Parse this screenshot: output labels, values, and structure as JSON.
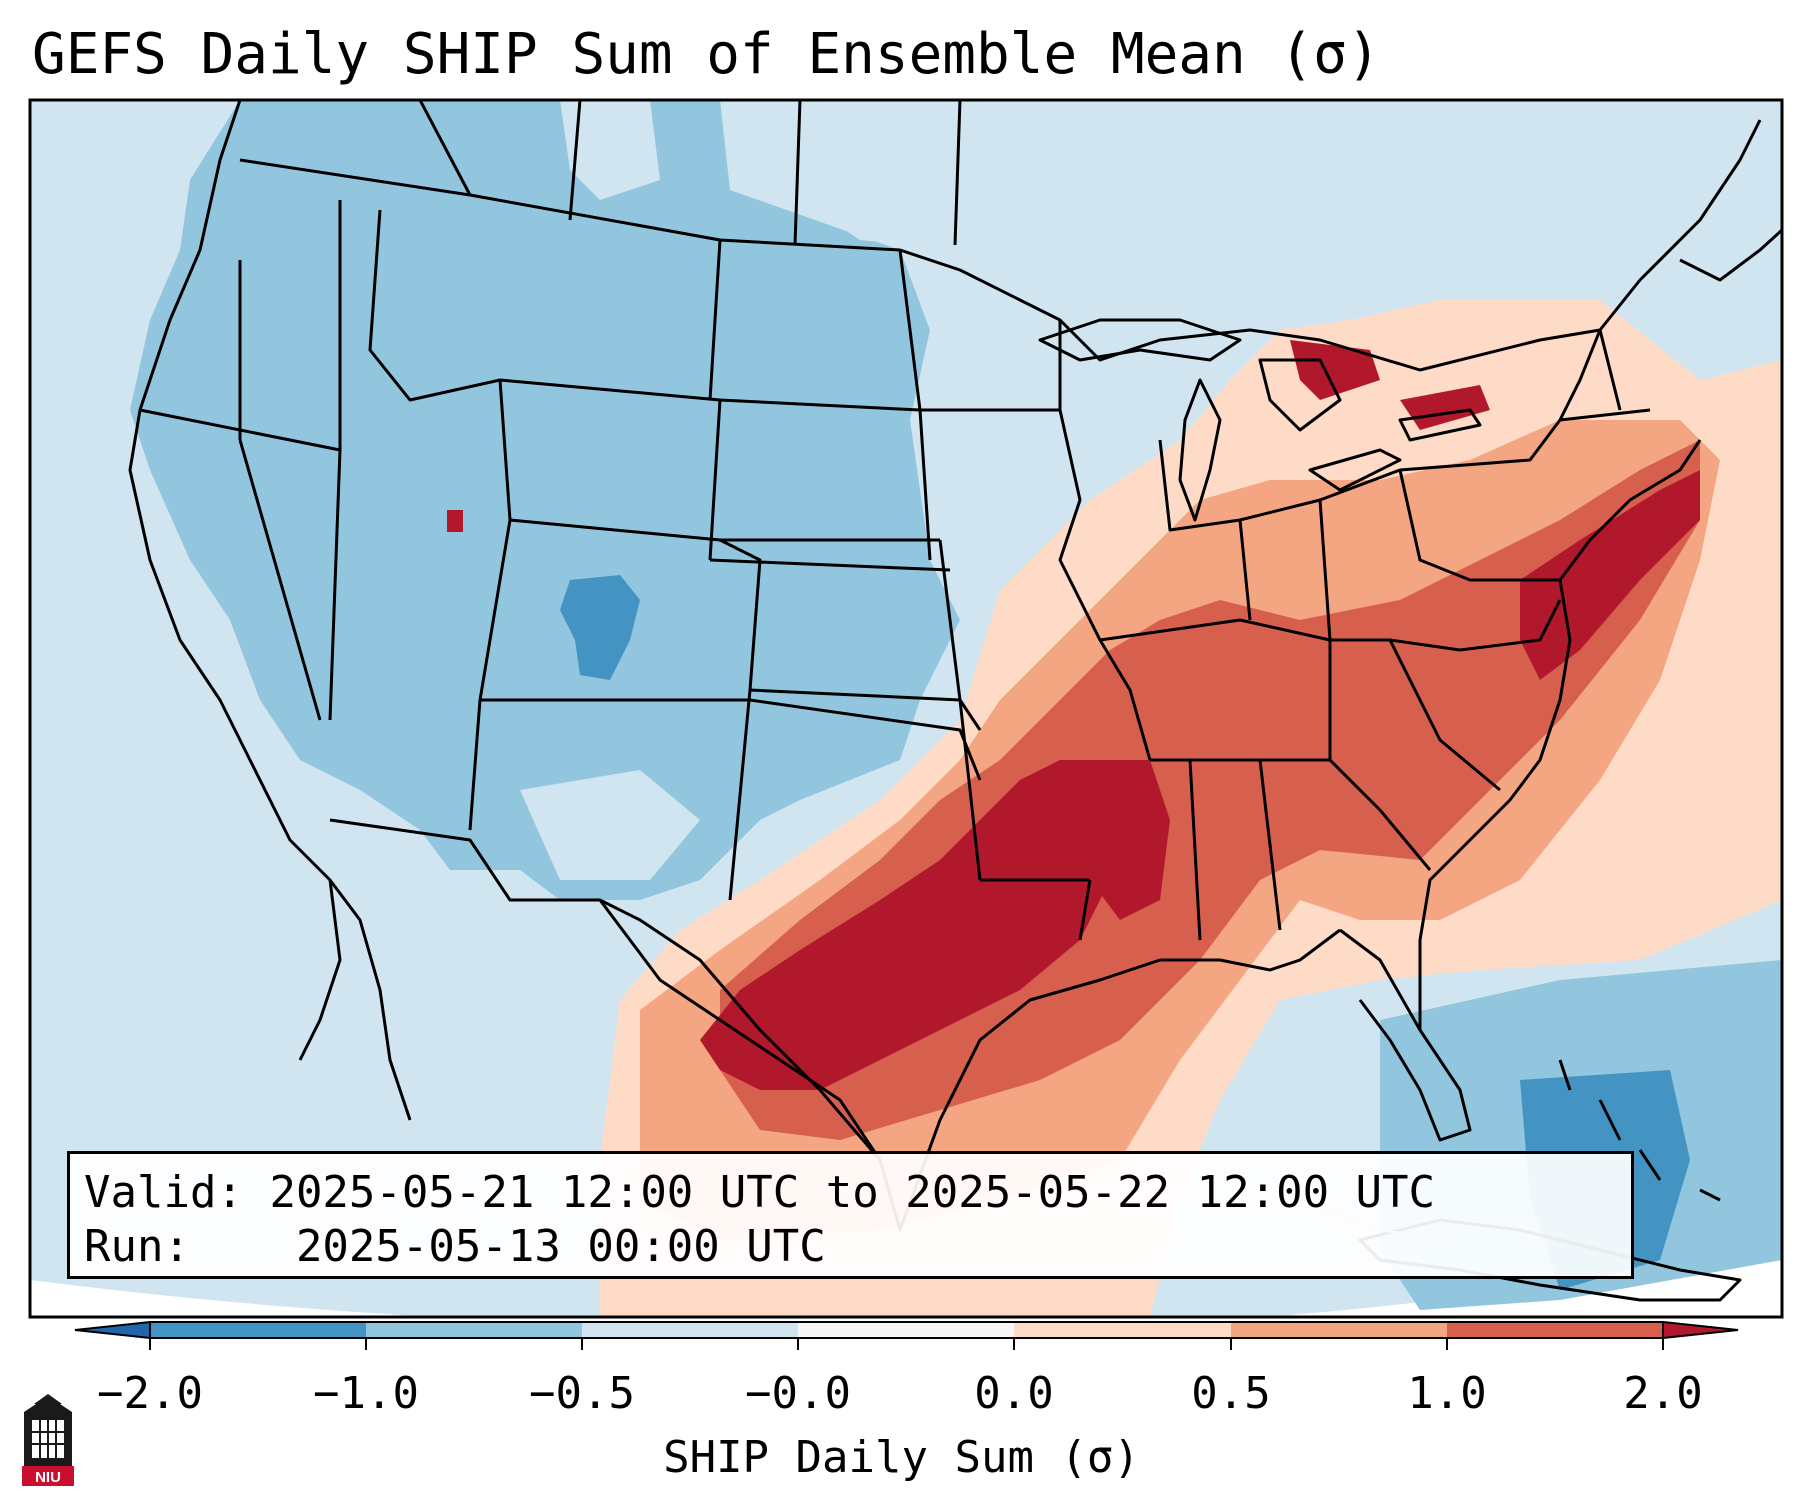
{
  "title": "GEFS Daily SHIP Sum of Ensemble Mean (σ)",
  "info": {
    "valid_label": "Valid:",
    "valid_value": "2025-05-21 12:00 UTC to 2025-05-22 12:00 UTC",
    "run_label": "Run:",
    "run_value": "2025-05-13 00:00 UTC"
  },
  "colorbar": {
    "label": "SHIP Daily Sum (σ)",
    "ticks": [
      "−2.0",
      "−1.0",
      "−0.5",
      "−0.0",
      "0.0",
      "0.5",
      "1.0",
      "2.0"
    ],
    "bins": [
      {
        "range": "< -2.0",
        "color": "#2166ac"
      },
      {
        "range": "-2.0 to -1.0",
        "color": "#4393c3"
      },
      {
        "range": "-1.0 to -0.5",
        "color": "#92c5de"
      },
      {
        "range": "-0.5 to 0.0",
        "color": "#d1e5f0"
      },
      {
        "range": "0.0",
        "color": "#f7f7f7"
      },
      {
        "range": "0.0 to 0.5",
        "color": "#fddbc7"
      },
      {
        "range": "0.5 to 1.0",
        "color": "#f4a582"
      },
      {
        "range": "1.0 to 2.0",
        "color": "#d6604d"
      },
      {
        "range": "> 2.0",
        "color": "#b2182b"
      }
    ]
  },
  "logo": {
    "text": "NIU",
    "icon": "university-building-icon"
  },
  "map": {
    "domain": "Contiguous United States",
    "background_color": "#d1e5f0"
  }
}
